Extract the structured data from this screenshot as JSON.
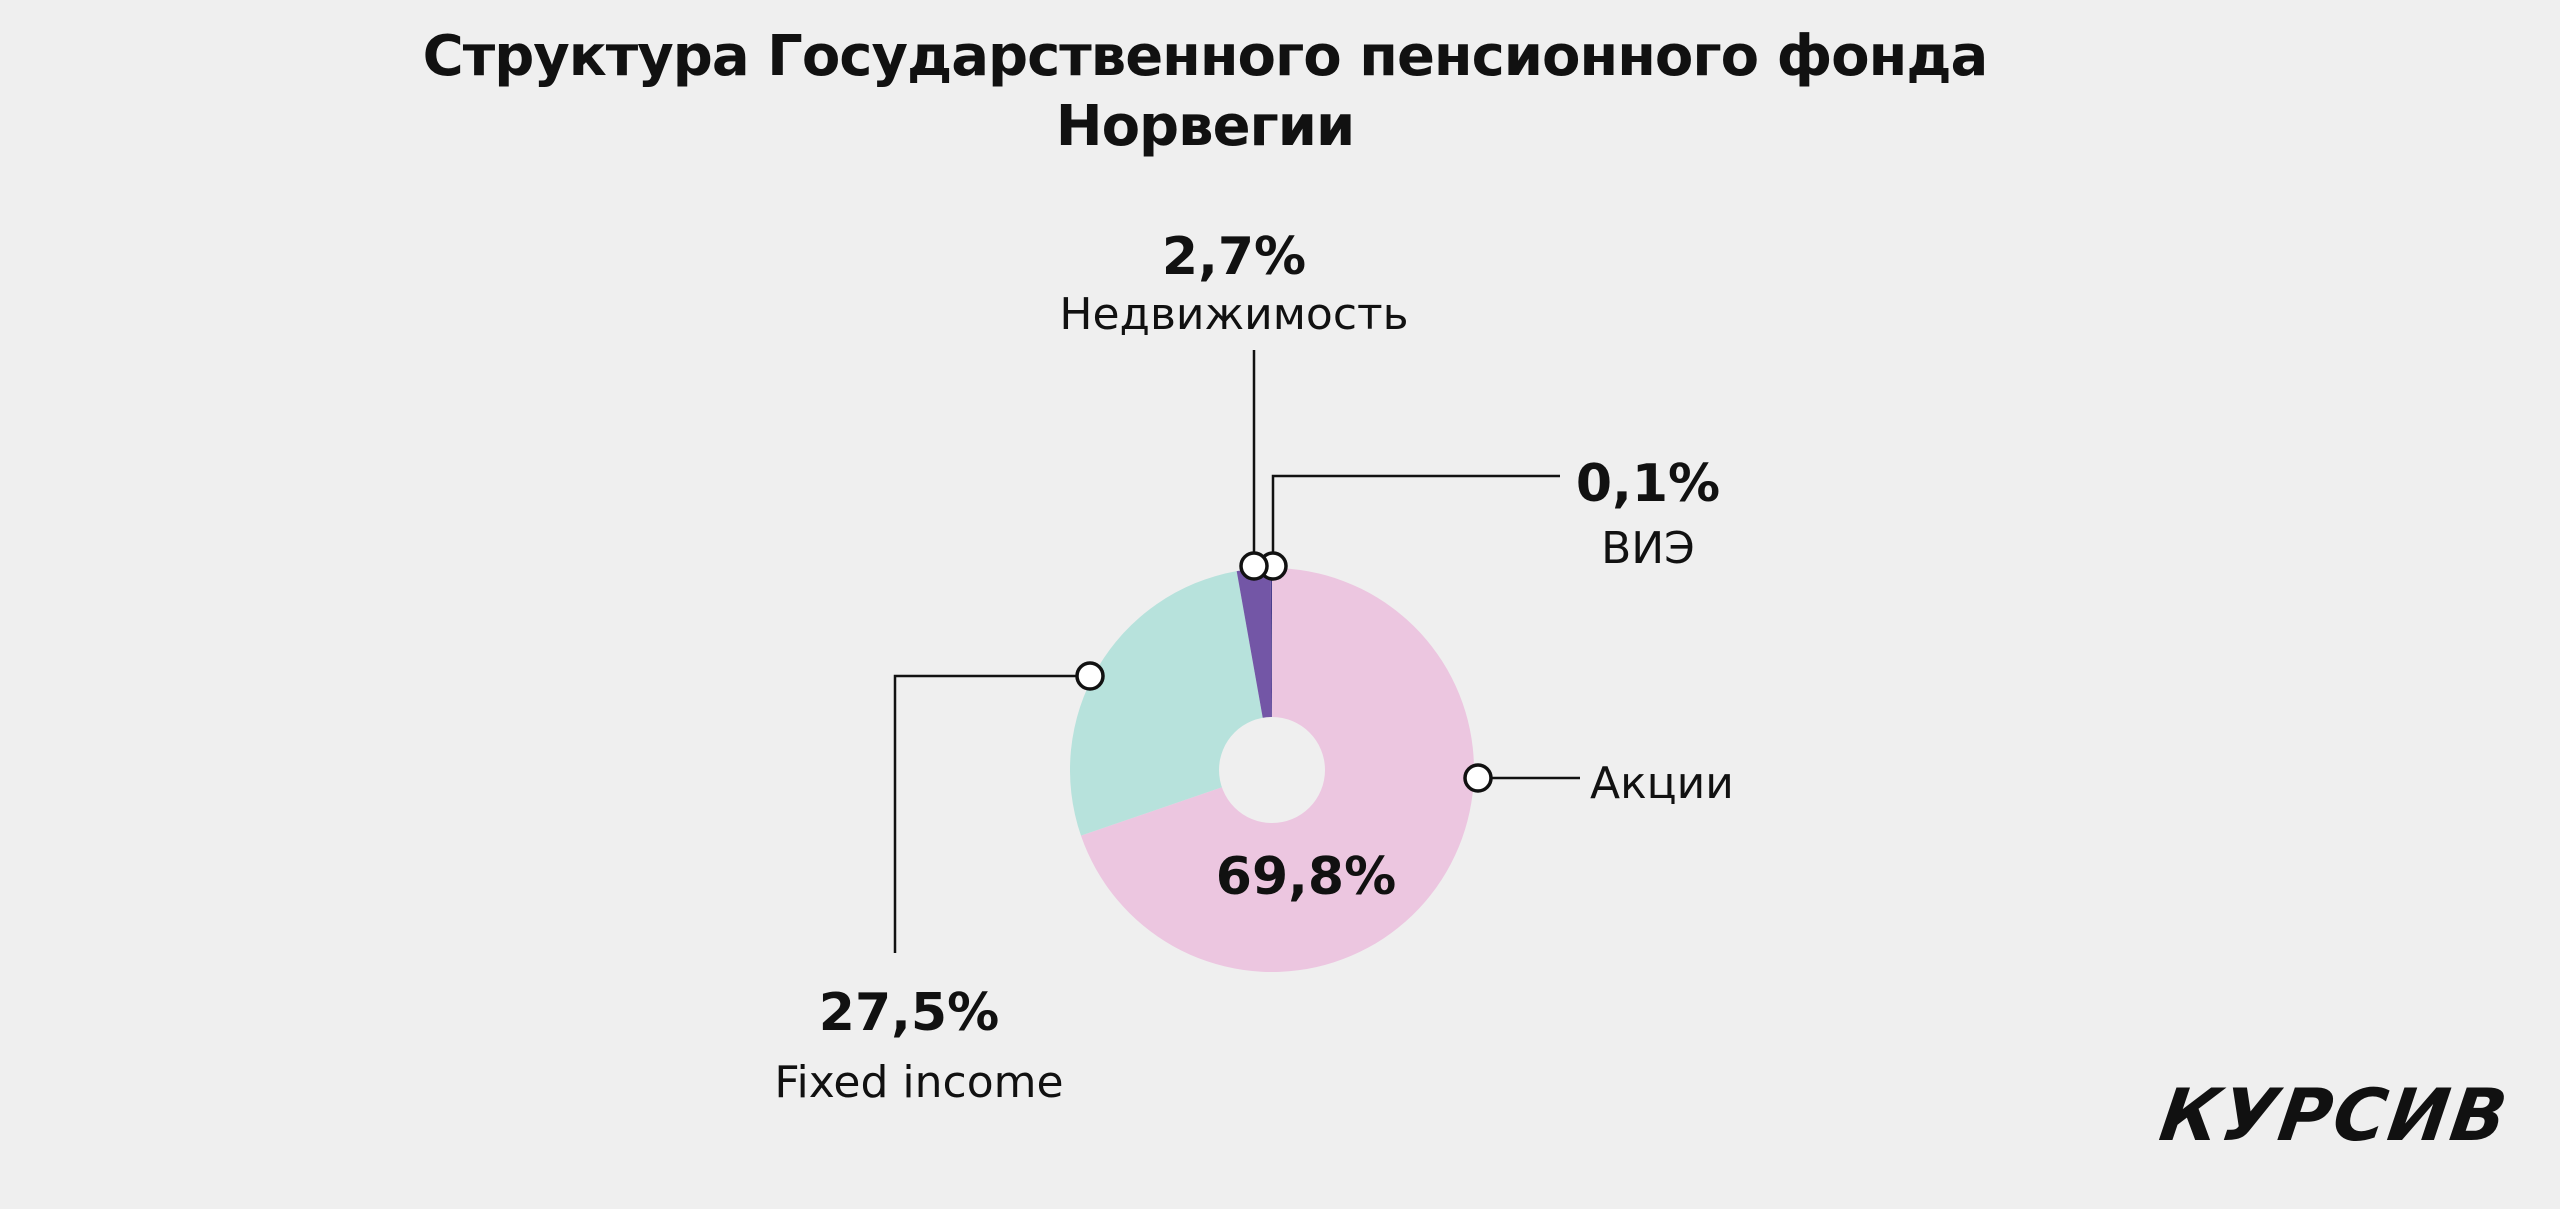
{
  "chart_data": {
    "type": "pie",
    "donut": true,
    "title": "Структура Государственного пенсионного фонда Норвегии",
    "title_lines": [
      "Структура Государственного пенсионного фонда",
      "Норвегии"
    ],
    "slices": [
      {
        "label": "Акции",
        "value": 69.8,
        "value_label": "69,8%",
        "color": "#ecc6e0"
      },
      {
        "label": "Fixed income",
        "value": 27.5,
        "value_label": "27,5%",
        "color": "#b7e2dc"
      },
      {
        "label": "Недвижимость",
        "value": 2.7,
        "value_label": "2,7%",
        "color": "#7356a6"
      },
      {
        "label": "ВИЭ",
        "value": 0.1,
        "value_label": "0,1%",
        "color": "#4a3f8c"
      }
    ],
    "legend": "none"
  },
  "brand": {
    "logo_text": "КУРСИВ"
  },
  "colors": {
    "background": "#efefef",
    "text": "#111111",
    "leader_line": "#111111",
    "marker_fill": "#ffffff"
  }
}
